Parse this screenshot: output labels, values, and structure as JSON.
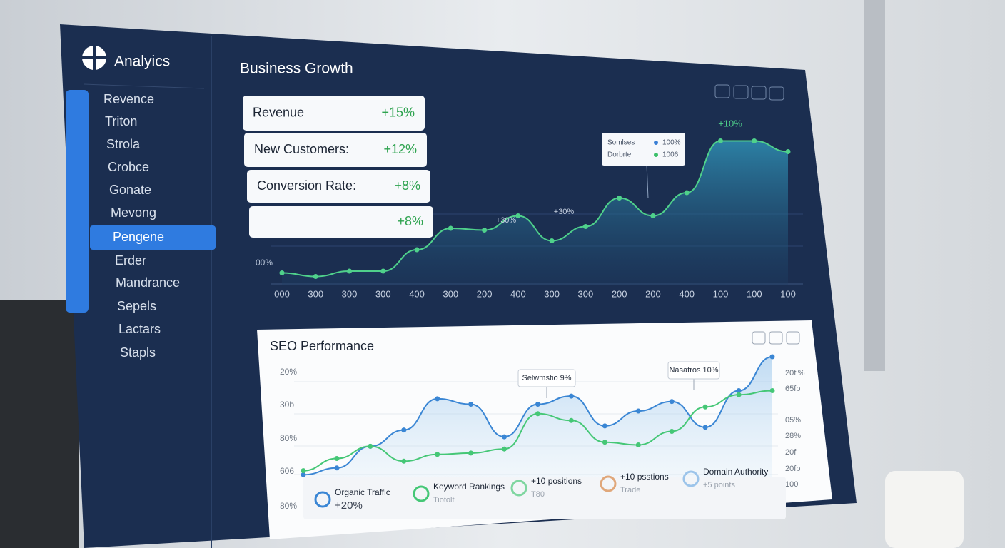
{
  "sidebar": {
    "brand": "Analyics",
    "items": [
      "Revence",
      "Triton",
      "Strola",
      "Crobce",
      "Gonate",
      "Mevong",
      "Pengene",
      "Erder",
      "Mandrance",
      "Sepels",
      "Lactars",
      "Stapls"
    ],
    "active_item": 6
  },
  "header": {
    "title": "Business Growth"
  },
  "kpis": [
    {
      "label": "Revenue",
      "change": "+15%"
    },
    {
      "label": "New Customers:",
      "change": "+12%"
    },
    {
      "label": "Conversion Rate:",
      "change": "+8%"
    },
    {
      "change": "+8%"
    }
  ],
  "chart_data": [
    {
      "type": "area",
      "categories": [
        "000",
        "300",
        "300",
        "300",
        "400",
        "300",
        "200",
        "400",
        "300",
        "300",
        "200",
        "200",
        "400",
        "100",
        "100",
        "100"
      ],
      "series": [
        {
          "color": "#4fd18b",
          "values": [
            7,
            5,
            8,
            8,
            20,
            32,
            31,
            39,
            25,
            33,
            49,
            39,
            52,
            81,
            81,
            75
          ]
        }
      ],
      "ylim": [
        0,
        100
      ],
      "y_labels": [
        "00%"
      ],
      "annotations": [
        "+30%",
        "+30%",
        "+10%"
      ],
      "tooltip": [
        {
          "name": "Somlses",
          "value": "100%",
          "color": "#3a7fd5"
        },
        {
          "name": "Dorbrte",
          "value": "1006",
          "color": "#3cc06a"
        }
      ]
    },
    {
      "type": "line",
      "title": "SEO Performance",
      "categories": [
        null,
        null,
        null,
        null,
        null,
        null,
        null,
        null,
        null,
        null,
        null,
        null,
        null,
        null,
        null
      ],
      "series": [
        {
          "color": "#3a86d4",
          "values": [
            13,
            18,
            34,
            46,
            69,
            65,
            41,
            65,
            71,
            49,
            60,
            67,
            48,
            75,
            100
          ]
        },
        {
          "color": "#45c776",
          "values": [
            16,
            25,
            34,
            23,
            28,
            29,
            32,
            58,
            53,
            37,
            35,
            45,
            63,
            72,
            75
          ]
        }
      ],
      "ylim": [
        0,
        100
      ],
      "y_labels": [
        "20%",
        "30b",
        "80%",
        "606",
        "80%"
      ],
      "y2_labels": [
        "20fl%",
        "65fb",
        "05%",
        "28%",
        "20fl",
        "20fb",
        "100"
      ],
      "annotations": [
        "Selwmstio 9%",
        "Nasatros 10%"
      ]
    }
  ],
  "seo_legend": [
    {
      "title": "Organic Traffic",
      "detail": "+20%",
      "color": "#3a86d4"
    },
    {
      "title": "Keyword Rankings",
      "detail": "Tiotolt",
      "color": "#45c776"
    },
    {
      "title": "+10 positions",
      "detail": "T80",
      "color": "#7fd6a0"
    },
    {
      "title": "+10 psstions",
      "detail": "Trade",
      "color": "#e0a77a"
    },
    {
      "title": "Domain Authority",
      "detail": "+5 points",
      "color": "#9cc4ea"
    }
  ]
}
